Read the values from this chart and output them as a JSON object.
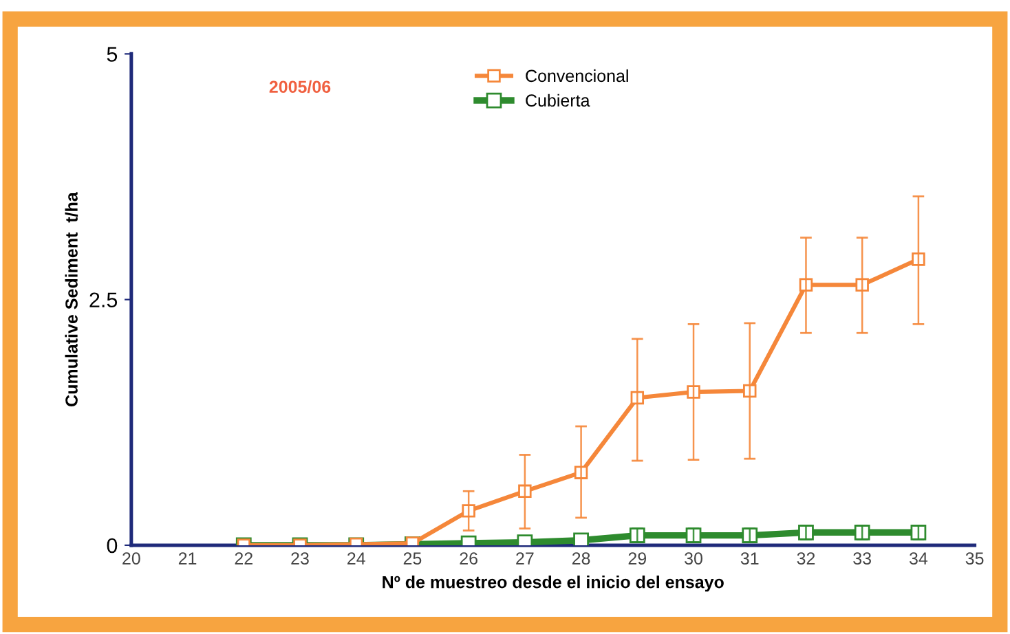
{
  "chart_data": {
    "type": "line",
    "xlabel": "Nº de muestreo desde el inicio del ensayo",
    "ylabel": "Cumulative Sediment  t/ha",
    "annotations": [
      "2005/06"
    ],
    "x": [
      22,
      23,
      24,
      25,
      26,
      27,
      28,
      29,
      30,
      31,
      32,
      33,
      34
    ],
    "series": [
      {
        "name": "Convencional",
        "color": "#f5873a",
        "values": [
          0,
          0,
          0.01,
          0.02,
          0.35,
          0.55,
          0.74,
          1.5,
          1.56,
          1.57,
          2.65,
          2.65,
          2.91
        ],
        "errors": [
          null,
          null,
          null,
          null,
          [
            0.15,
            0.55
          ],
          [
            0.17,
            0.92
          ],
          [
            0.28,
            1.21
          ],
          [
            0.86,
            2.1
          ],
          [
            0.87,
            2.25
          ],
          [
            0.88,
            2.26
          ],
          [
            2.16,
            3.13
          ],
          [
            2.16,
            3.13
          ],
          [
            2.25,
            3.55
          ]
        ]
      },
      {
        "name": "Cubierta",
        "color": "#2e8b2e",
        "values": [
          0,
          0,
          0,
          0.01,
          0.02,
          0.03,
          0.05,
          0.1,
          0.1,
          0.1,
          0.13,
          0.13,
          0.13
        ],
        "errors": [
          null,
          null,
          null,
          null,
          null,
          null,
          null,
          0.07,
          0.07,
          0.07,
          0.07,
          0.07,
          0.07
        ]
      }
    ],
    "xlim": [
      20,
      35
    ],
    "xticks": [
      20,
      21,
      22,
      23,
      24,
      25,
      26,
      27,
      28,
      29,
      30,
      31,
      32,
      33,
      34,
      35
    ],
    "ylim": [
      0,
      5
    ],
    "yticks": [
      0,
      2.5,
      5
    ],
    "grid": false,
    "legend": "top",
    "marker": "square",
    "line_style": "solid"
  }
}
